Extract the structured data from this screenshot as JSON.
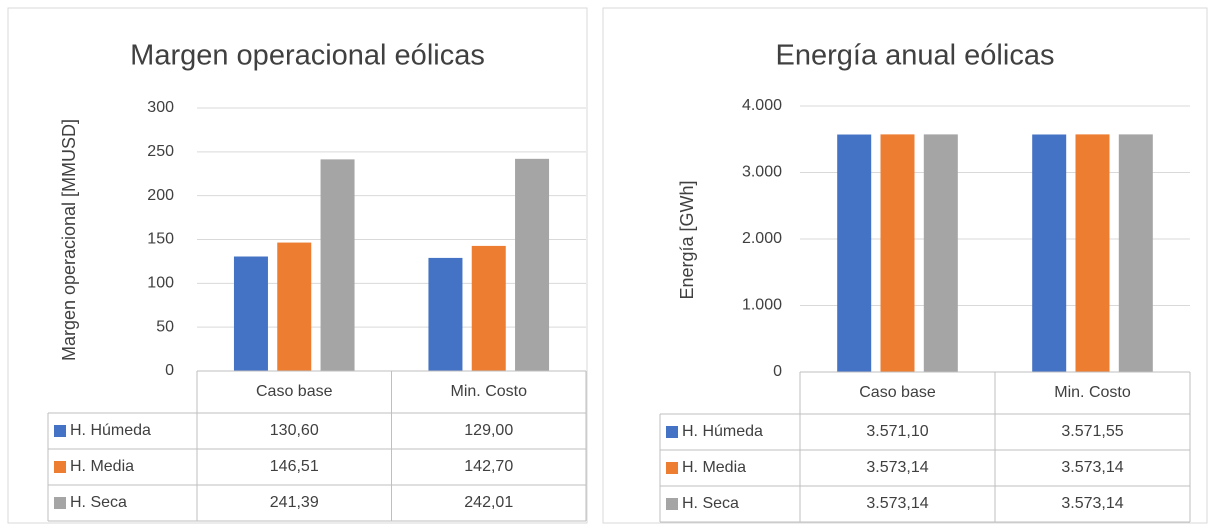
{
  "chart_data": [
    {
      "type": "bar",
      "title": "Margen operacional eólicas",
      "y_label": "Margen operacional [MMUSD]",
      "categories": [
        "Caso base",
        "Min. Costo"
      ],
      "series": [
        {
          "name": "H. Húmeda",
          "color": "#4472c4",
          "values": [
            130.6,
            129.0
          ],
          "value_labels": [
            "130,60",
            "129,00"
          ]
        },
        {
          "name": "H. Media",
          "color": "#ed7d31",
          "values": [
            146.51,
            142.7
          ],
          "value_labels": [
            "146,51",
            "142,70"
          ]
        },
        {
          "name": "H. Seca",
          "color": "#a5a5a5",
          "values": [
            241.39,
            242.01
          ],
          "value_labels": [
            "241,39",
            "242,01"
          ]
        }
      ],
      "ylim": [
        0,
        300
      ],
      "yticks": [
        0,
        50,
        100,
        150,
        200,
        250,
        300
      ],
      "grid": true
    },
    {
      "type": "bar",
      "title": "Energía anual eólicas",
      "y_label": "Energía [GWh]",
      "categories": [
        "Caso base",
        "Min. Costo"
      ],
      "series": [
        {
          "name": "H. Húmeda",
          "color": "#4472c4",
          "values": [
            3571.1,
            3571.55
          ],
          "value_labels": [
            "3.571,10",
            "3.571,55"
          ]
        },
        {
          "name": "H. Media",
          "color": "#ed7d31",
          "values": [
            3573.14,
            3573.14
          ],
          "value_labels": [
            "3.573,14",
            "3.573,14"
          ]
        },
        {
          "name": "H. Seca",
          "color": "#a5a5a5",
          "values": [
            3573.14,
            3573.14
          ],
          "value_labels": [
            "3.573,14",
            "3.573,14"
          ]
        }
      ],
      "ylim": [
        0,
        4000
      ],
      "yticks": [
        0,
        {
          "value": 1000,
          "label": "1.000"
        },
        {
          "value": 2000,
          "label": "2.000"
        },
        {
          "value": 3000,
          "label": "3.000"
        },
        {
          "value": 4000,
          "label": "4.000"
        }
      ],
      "grid": true
    }
  ]
}
